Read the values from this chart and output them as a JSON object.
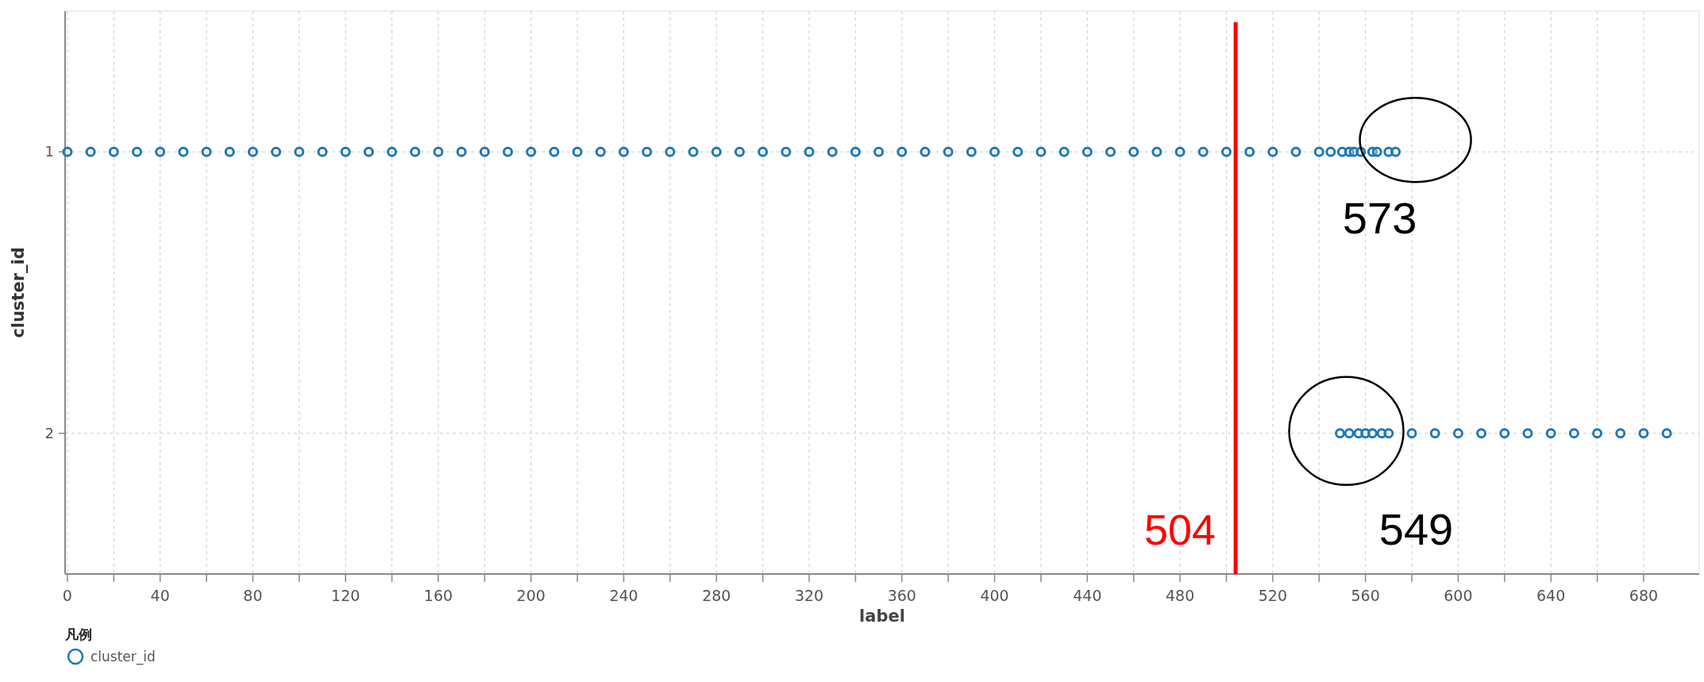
{
  "chart_data": {
    "type": "scatter",
    "xlabel": "label",
    "ylabel": "cluster_id",
    "legend_title": "凡例",
    "legend": "bottom left",
    "grid": true,
    "marker": "circle",
    "xlim": [
      -1,
      704
    ],
    "ylim": [
      2.5,
      0.5
    ],
    "xticks": [
      0,
      {
        "value": 20,
        "label": null
      },
      40,
      {
        "value": 60,
        "label": null
      },
      80,
      {
        "value": 100,
        "label": null
      },
      120,
      {
        "value": 140,
        "label": null
      },
      160,
      {
        "value": 180,
        "label": null
      },
      200,
      {
        "value": 220,
        "label": null
      },
      240,
      {
        "value": 260,
        "label": null
      },
      280,
      {
        "value": 300,
        "label": null
      },
      320,
      {
        "value": 340,
        "label": null
      },
      360,
      {
        "value": 380,
        "label": null
      },
      400,
      {
        "value": 420,
        "label": null
      },
      440,
      {
        "value": 460,
        "label": null
      },
      480,
      {
        "value": 500,
        "label": null
      },
      520,
      {
        "value": 540,
        "label": null
      },
      560,
      {
        "value": 580,
        "label": null
      },
      600,
      {
        "value": 620,
        "label": null
      },
      640,
      {
        "value": 660,
        "label": null
      },
      680
    ],
    "yticks": [
      1,
      2
    ],
    "series": [
      {
        "name": "cluster_id",
        "color": "#1f77b4",
        "x": [
          0,
          10,
          20,
          30,
          40,
          50,
          60,
          70,
          80,
          90,
          100,
          110,
          120,
          130,
          140,
          150,
          160,
          170,
          180,
          190,
          200,
          210,
          220,
          230,
          240,
          250,
          260,
          270,
          280,
          290,
          300,
          310,
          320,
          330,
          340,
          350,
          360,
          370,
          380,
          390,
          400,
          410,
          420,
          430,
          440,
          450,
          460,
          470,
          480,
          490,
          500,
          510,
          520,
          530,
          540,
          545,
          550,
          553,
          555,
          558,
          563,
          565,
          570,
          573,
          549,
          553,
          557,
          560,
          563,
          567,
          570,
          580,
          590,
          600,
          610,
          620,
          630,
          640,
          650,
          660,
          670,
          680,
          690
        ],
        "values": [
          1,
          1,
          1,
          1,
          1,
          1,
          1,
          1,
          1,
          1,
          1,
          1,
          1,
          1,
          1,
          1,
          1,
          1,
          1,
          1,
          1,
          1,
          1,
          1,
          1,
          1,
          1,
          1,
          1,
          1,
          1,
          1,
          1,
          1,
          1,
          1,
          1,
          1,
          1,
          1,
          1,
          1,
          1,
          1,
          1,
          1,
          1,
          1,
          1,
          1,
          1,
          1,
          1,
          1,
          1,
          1,
          1,
          1,
          1,
          1,
          1,
          1,
          1,
          1,
          2,
          2,
          2,
          2,
          2,
          2,
          2,
          2,
          2,
          2,
          2,
          2,
          2,
          2,
          2,
          2,
          2,
          2,
          2
        ]
      }
    ],
    "ref_lines": [
      {
        "axis": "x",
        "value": 504,
        "label": "504",
        "color": "#ff0000"
      }
    ],
    "annotations": [
      {
        "text": "573",
        "x": 573,
        "y": 1
      },
      {
        "text": "549",
        "x": 549,
        "y": 2
      }
    ]
  }
}
